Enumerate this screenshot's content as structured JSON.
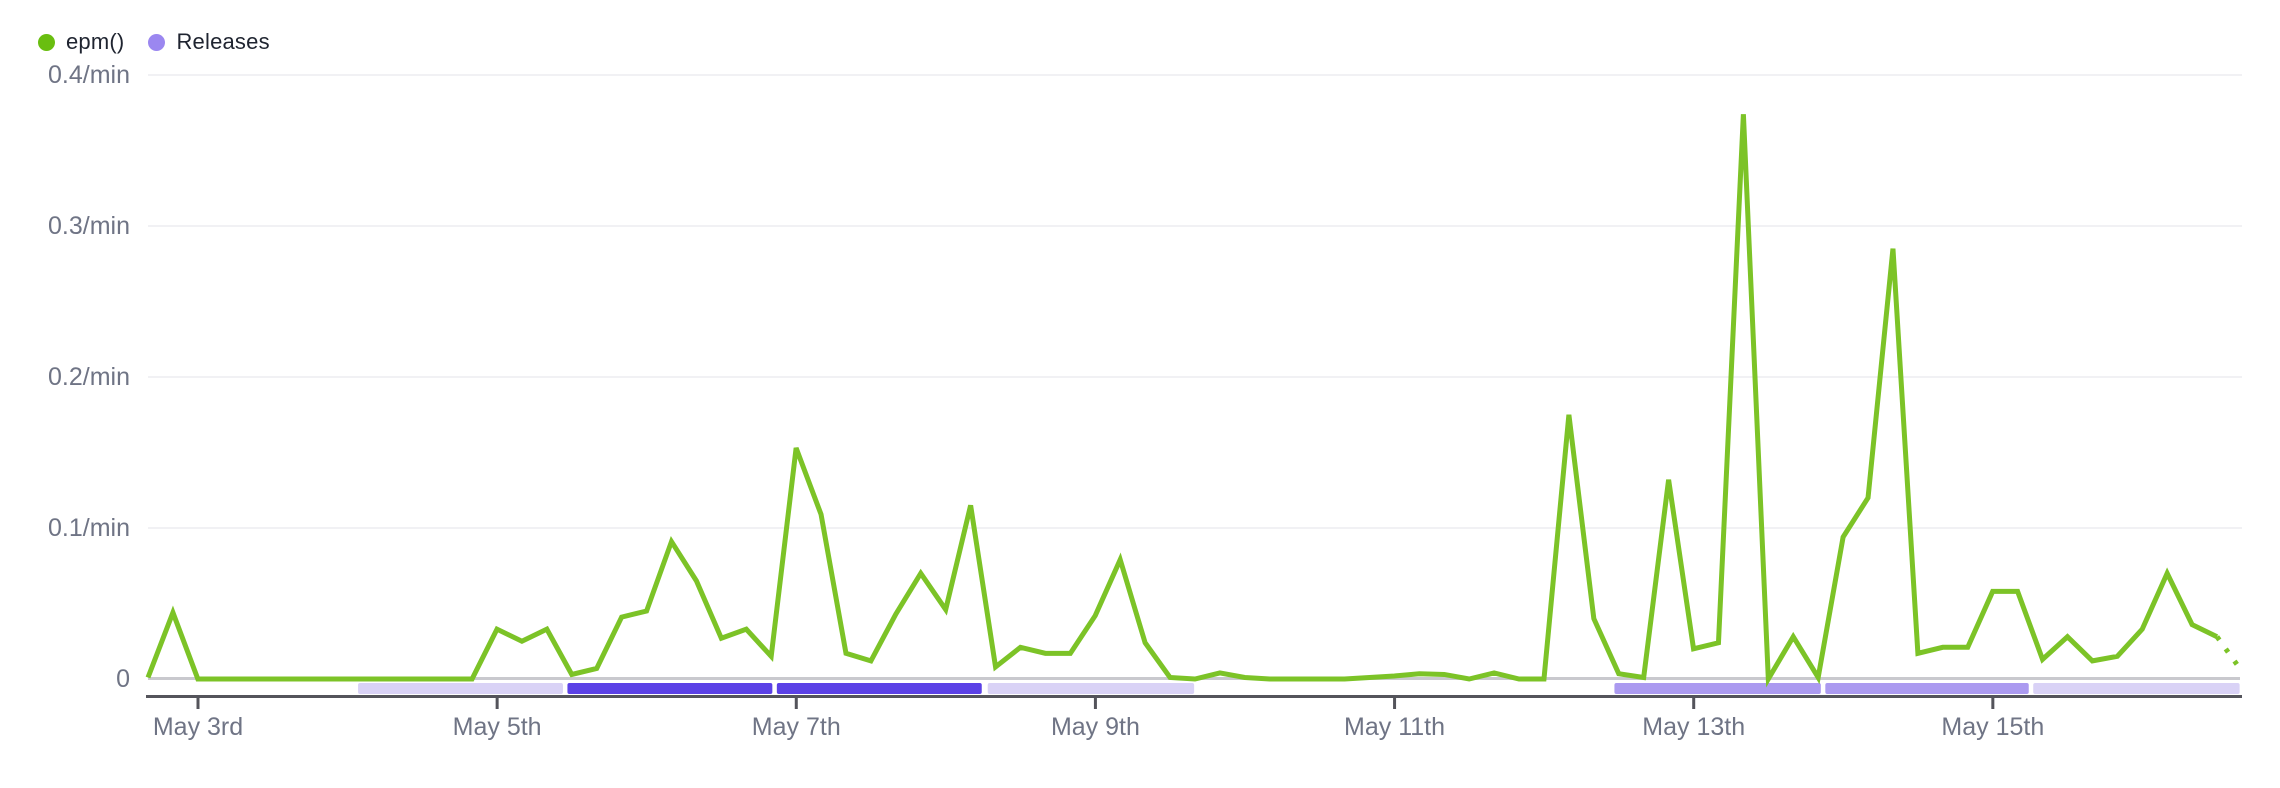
{
  "legend": {
    "items": [
      {
        "label": "epm()",
        "color": "#69be10",
        "type": "series"
      },
      {
        "label": "Releases",
        "color": "#9b87f0",
        "type": "releases"
      }
    ]
  },
  "chart_data": {
    "type": "line",
    "title": "",
    "xlabel": "",
    "ylabel": "",
    "ylim": [
      0,
      0.4
    ],
    "unit": "/min",
    "x_start": "May 2 16:00",
    "x_interval": "4 hours",
    "grid": "horizontal-faint",
    "legend_position": "top-left",
    "last_segment_style": "dotted",
    "series": [
      {
        "name": "epm()",
        "values": [
          0.001,
          0.044,
          0,
          0,
          0,
          0,
          0,
          0,
          0,
          0,
          0,
          0,
          0,
          0,
          0.033,
          0.025,
          0.033,
          0.003,
          0.007,
          0.041,
          0.045,
          0.091,
          0.065,
          0.027,
          0.033,
          0.015,
          0.153,
          0.109,
          0.017,
          0.012,
          0.043,
          0.07,
          0.046,
          0.115,
          0.008,
          0.021,
          0.017,
          0.017,
          0.042,
          0.079,
          0.024,
          0.001,
          0,
          0.004,
          0.001,
          0,
          0,
          0,
          0,
          0.001,
          0.002,
          0.0035,
          0.003,
          0,
          0.004,
          0,
          0,
          0.175,
          0.04,
          0.0035,
          0.001,
          0.132,
          0.02,
          0.024,
          0.374,
          0,
          0.028,
          0.001,
          0.094,
          0.12,
          0.285,
          0.017,
          0.021,
          0.021,
          0.058,
          0.058,
          0.013,
          0.028,
          0.012,
          0.015,
          0.033,
          0.07,
          0.036,
          0.028,
          0.005
        ]
      }
    ],
    "y_ticks": [
      {
        "value": 0,
        "label": "0"
      },
      {
        "value": 0.1,
        "label": "0.1/min"
      },
      {
        "value": 0.2,
        "label": "0.2/min"
      },
      {
        "value": 0.3,
        "label": "0.3/min"
      },
      {
        "value": 0.4,
        "label": "0.4/min"
      }
    ],
    "x_ticks": [
      {
        "day": 3,
        "label": "May 3rd"
      },
      {
        "day": 5,
        "label": "May 5th"
      },
      {
        "day": 7,
        "label": "May 7th"
      },
      {
        "day": 9,
        "label": "May 9th"
      },
      {
        "day": 11,
        "label": "May 11th"
      },
      {
        "day": 13,
        "label": "May 13th"
      },
      {
        "day": 15,
        "label": "May 15th"
      }
    ],
    "releases": {
      "label": "Releases",
      "bands": [
        {
          "from_day": 4.07,
          "to_day": 5.44,
          "density": "light"
        },
        {
          "from_day": 5.47,
          "to_day": 6.84,
          "density": "dark"
        },
        {
          "from_day": 6.87,
          "to_day": 8.24,
          "density": "dark"
        },
        {
          "from_day": 8.28,
          "to_day": 9.66,
          "density": "light"
        },
        {
          "from_day": 12.47,
          "to_day": 13.85,
          "density": "medium"
        },
        {
          "from_day": 13.88,
          "to_day": 15.24,
          "density": "medium"
        },
        {
          "from_day": 15.27,
          "to_day": 16.65,
          "density": "light"
        }
      ]
    },
    "colors": {
      "line": "#7cc327",
      "release_light": "#d9d2f6",
      "release_medium": "#ab9af0",
      "release_dark": "#5b41e6",
      "baseline": "#c9c9ce",
      "axis": "#54545b",
      "gridline": "#f1f1f4",
      "label": "#6f7485"
    }
  }
}
